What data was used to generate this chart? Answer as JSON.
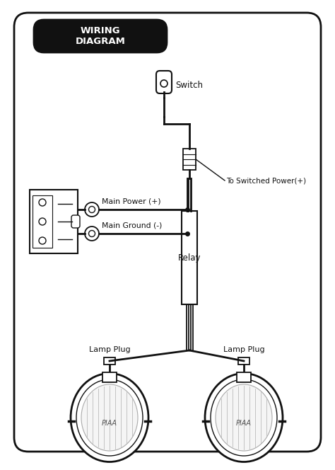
{
  "bg_color": "#ffffff",
  "border_color": "#111111",
  "title": "WIRING\nDIAGRAM",
  "title_bg": "#111111",
  "title_text_color": "#ffffff",
  "labels": {
    "switch": "Switch",
    "switched_power": "To Switched Power(+)",
    "main_power": "Main Power (+)",
    "main_ground": "Main Ground (-)",
    "relay": "Relay",
    "lamp_plug_left": "Lamp Plug",
    "lamp_plug_right": "Lamp Plug"
  },
  "line_color": "#111111",
  "lw_wire": 2.0,
  "lw_thin": 1.2
}
